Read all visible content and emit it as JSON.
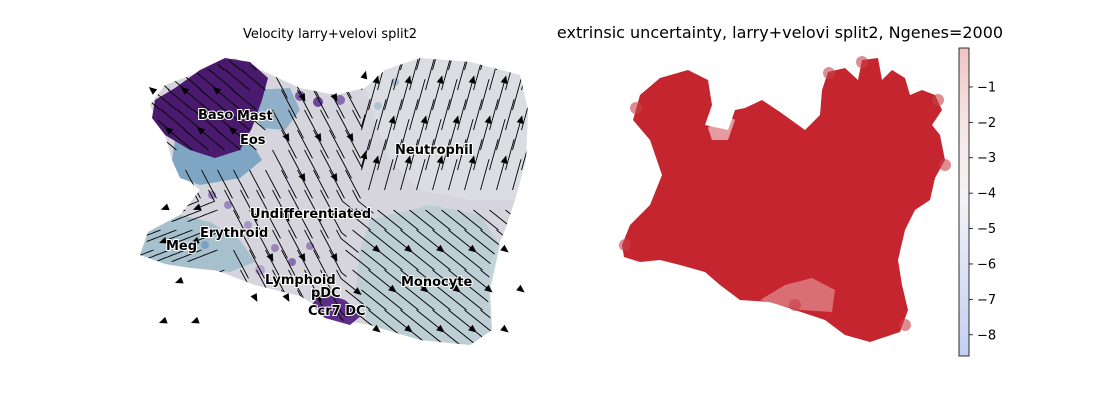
{
  "chart_data": [
    {
      "type": "scatter",
      "title": "Velocity larry+velovi split2",
      "overlay": "velocity streamlines",
      "grid": false,
      "axes_visible": false,
      "cluster_labels": [
        "Baso",
        "Mast",
        "Eos",
        "Neutrophil",
        "Undifferentiated",
        "Erythroid",
        "Meg",
        "Lymphoid",
        "pDC",
        "Ccr7 DC",
        "Monocyte"
      ],
      "colors": {
        "purple": "#4a1a6e",
        "steel_blue": "#86aec6",
        "light_gray": "#d6d4dc",
        "teal_gray": "#b9cdd4",
        "lavender": "#9a86bd",
        "arrow": "#000000"
      }
    },
    {
      "type": "scatter",
      "title": "extrinsic uncertainty, larry+velovi split2, Ngenes=2000",
      "grid": false,
      "axes_visible": false,
      "point_color": "#c0121c",
      "colorbar": {
        "vmin": -8.6,
        "vmax": 0.1,
        "ticks": [
          -1,
          -2,
          -3,
          -4,
          -5,
          -6,
          -7,
          -8
        ],
        "tick_labels": [
          "−1",
          "−2",
          "−3",
          "−4",
          "−5",
          "−6",
          "−7",
          "−8"
        ],
        "colormap": "coolwarm",
        "placement": "right"
      }
    }
  ]
}
